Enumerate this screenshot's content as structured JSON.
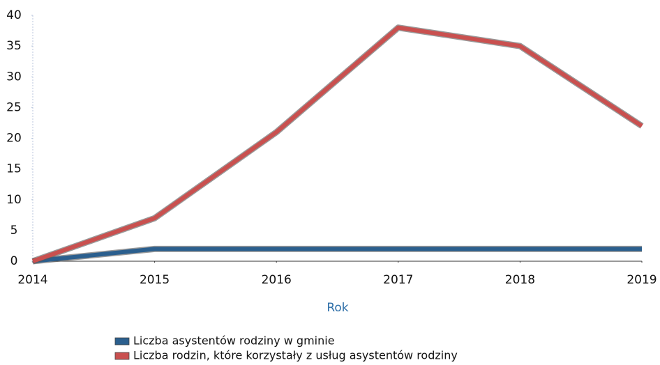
{
  "chart_data": {
    "type": "line",
    "x": [
      2014,
      2015,
      2016,
      2017,
      2018,
      2019
    ],
    "xlim": [
      2014,
      2019
    ],
    "xticks": [
      2014,
      2015,
      2016,
      2017,
      2018,
      2019
    ],
    "ylim": [
      0,
      40
    ],
    "yticks": [
      0,
      5,
      10,
      15,
      20,
      25,
      30,
      35,
      40
    ],
    "x_label": "Rok",
    "series": [
      {
        "name": "Liczba asystentów rodziny w gminie",
        "color": "#2b5f8e",
        "values": [
          0,
          2,
          2,
          2,
          2,
          2
        ]
      },
      {
        "name": "Liczba rodzin, które korzystały z usług asystentów rodziny",
        "color": "#c9504f",
        "values": [
          0,
          7,
          21,
          38,
          35,
          22
        ]
      }
    ]
  }
}
